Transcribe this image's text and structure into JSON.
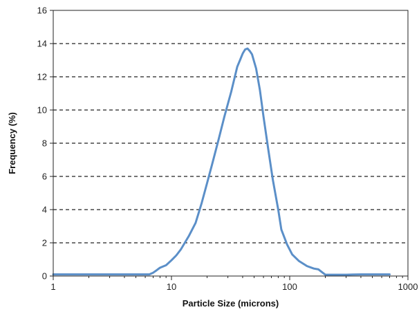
{
  "chart_data": {
    "type": "line",
    "title": "",
    "xlabel": "Particle Size (microns)",
    "ylabel": "Frequency (%)",
    "x_scale": "log",
    "xlim": [
      1,
      1000
    ],
    "ylim": [
      0,
      16
    ],
    "x_ticks": [
      1,
      10,
      100,
      1000
    ],
    "x_tick_labels": [
      "1",
      "10",
      "100",
      "1000"
    ],
    "y_ticks": [
      0,
      2,
      4,
      6,
      8,
      10,
      12,
      14,
      16
    ],
    "y_tick_labels": [
      "0",
      "2",
      "4",
      "6",
      "8",
      "10",
      "12",
      "14",
      "16"
    ],
    "grid": "horizontal dashed lines at y ticks",
    "legend": "none",
    "line_color": "#5b8fc8",
    "series": [
      {
        "x": [
          1,
          2,
          3,
          4,
          5,
          6,
          6.5,
          7,
          7.5,
          8,
          9,
          10,
          11,
          12,
          14,
          16,
          18,
          20,
          22,
          25,
          28,
          32,
          36,
          38,
          40,
          42,
          44,
          46,
          48,
          52,
          56,
          60,
          66,
          72,
          80,
          85,
          95,
          105,
          120,
          140,
          160,
          175,
          190,
          200,
          250,
          300,
          400,
          500,
          700
        ],
        "y": [
          0.1,
          0.1,
          0.1,
          0.1,
          0.1,
          0.1,
          0.1,
          0.2,
          0.35,
          0.5,
          0.65,
          0.95,
          1.25,
          1.6,
          2.4,
          3.2,
          4.4,
          5.6,
          6.7,
          8.2,
          9.6,
          11.1,
          12.6,
          13.0,
          13.4,
          13.65,
          13.7,
          13.55,
          13.35,
          12.5,
          11.2,
          9.6,
          7.6,
          5.8,
          4.0,
          2.8,
          1.9,
          1.3,
          0.9,
          0.6,
          0.45,
          0.4,
          0.2,
          0.08,
          0.08,
          0.08,
          0.1,
          0.1,
          0.1
        ]
      }
    ]
  }
}
